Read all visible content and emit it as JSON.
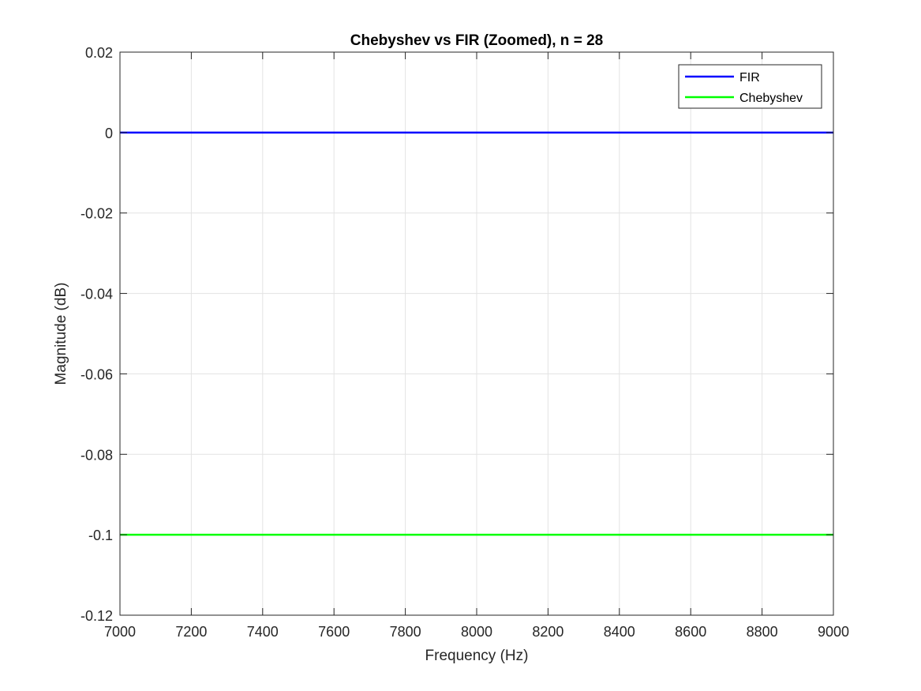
{
  "chart_data": {
    "type": "line",
    "title": "Chebyshev vs FIR (Zoomed), n = 28",
    "xlabel": "Frequency (Hz)",
    "ylabel": "Magnitude (dB)",
    "xlim": [
      7000,
      9000
    ],
    "ylim": [
      -0.12,
      0.02
    ],
    "xticks": [
      7000,
      7200,
      7400,
      7600,
      7800,
      8000,
      8200,
      8400,
      8600,
      8800,
      9000
    ],
    "yticks": [
      0.02,
      0,
      -0.02,
      -0.04,
      -0.06,
      -0.08,
      -0.1,
      -0.12
    ],
    "xtick_labels": [
      "7000",
      "7200",
      "7400",
      "7600",
      "7800",
      "8000",
      "8200",
      "8400",
      "8600",
      "8800",
      "9000"
    ],
    "ytick_labels": [
      "0.02",
      "0",
      "-0.02",
      "-0.04",
      "-0.06",
      "-0.08",
      "-0.1",
      "-0.12"
    ],
    "grid": true,
    "legend_position": "top-right",
    "series": [
      {
        "name": "FIR",
        "color": "#0000ff",
        "x": [
          7000,
          9000
        ],
        "y": [
          0,
          0
        ]
      },
      {
        "name": "Chebyshev",
        "color": "#00ff00",
        "x": [
          7000,
          9000
        ],
        "y": [
          -0.1,
          -0.1
        ]
      }
    ]
  }
}
